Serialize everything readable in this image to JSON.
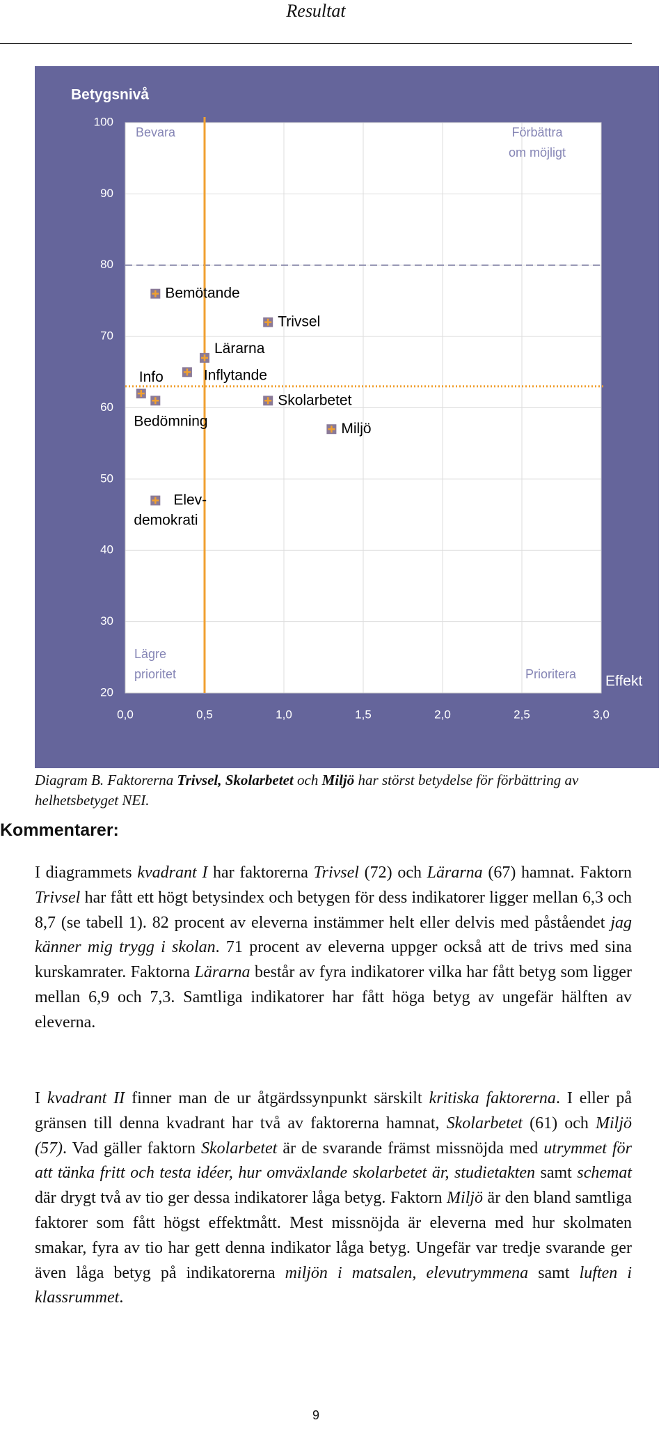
{
  "header": {
    "title": "Resultat"
  },
  "chart_data": {
    "type": "scatter",
    "y_label": "Betygsnivå",
    "x_label": "Effekt",
    "xlim": [
      0,
      3
    ],
    "ylim": [
      20,
      100
    ],
    "xticks": [
      {
        "value": 0,
        "label": "0,0"
      },
      {
        "value": 0.5,
        "label": "0,5"
      },
      {
        "value": 1,
        "label": "1,0"
      },
      {
        "value": 1.5,
        "label": "1,5"
      },
      {
        "value": 2,
        "label": "2,0"
      },
      {
        "value": 2.5,
        "label": "2,5"
      },
      {
        "value": 3,
        "label": "3,0"
      }
    ],
    "yticks": [
      20,
      30,
      40,
      50,
      60,
      70,
      80,
      90,
      100
    ],
    "grid": true,
    "labels": [
      "Bemötande",
      "Trivsel",
      "Lärarna",
      "Inflytande",
      "Info",
      "Bedömning",
      "Skolarbetet",
      "Miljö",
      "Elev-\ndemokrati"
    ],
    "x": [
      0.19,
      0.9,
      0.5,
      0.39,
      0.1,
      0.19,
      0.9,
      1.3,
      0.19
    ],
    "y": [
      76,
      72,
      67,
      65,
      62,
      61,
      61,
      57,
      47
    ],
    "color": "#f0a030",
    "reference_lines": {
      "x": 0.5,
      "y": 63,
      "color": "#f0a030"
    },
    "target_line": {
      "y": 80,
      "color": "#8888aa"
    },
    "quadrant_labels": [
      "Bevara",
      "Förbättra\nom möjligt",
      "Lägre\nprioritet",
      "Prioritera"
    ]
  },
  "caption": [
    "Diagram B. Faktorerna ",
    {
      "text": "Trivsel, Skolarbetet",
      "style": "bold"
    },
    " och ",
    {
      "text": "Miljö",
      "style": "bold"
    },
    " har störst betydelse för förbättring av helhetsbetyget NEI."
  ],
  "section_title": "Kommentarer:",
  "paragraphs": [
    [
      "I diagrammets ",
      {
        "text": "kvadrant I",
        "style": "italic"
      },
      " har faktorerna ",
      {
        "text": "Trivsel",
        "style": "italic"
      },
      " (72) och ",
      {
        "text": "Lärarna",
        "style": "italic"
      },
      " (67) hamnat. Faktorn ",
      {
        "text": "Trivsel",
        "style": "italic"
      },
      " har fått ett högt betysindex och betygen för dess indikatorer ligger mellan 6,3 och 8,7 (se tabell 1). 82 procent av eleverna instämmer helt eller delvis med påståendet ",
      {
        "text": "jag känner mig trygg i skolan",
        "style": "italic"
      },
      ". 71 procent av eleverna uppger också att de trivs med sina kurskamrater. Faktorna ",
      {
        "text": "Lärarna",
        "style": "italic"
      },
      " består av fyra indikatorer vilka har fått betyg som ligger mellan 6,9 och 7,3. Samtliga indikatorer har fått höga betyg av ungefär hälften av eleverna."
    ],
    [
      "I ",
      {
        "text": "kvadrant II",
        "style": "italic"
      },
      " finner man de ur åtgärdssynpunkt särskilt ",
      {
        "text": "kritiska fakto­rerna",
        "style": "italic"
      },
      ". I eller på gränsen till denna kvadrant har två av faktorerna ham­nat, ",
      {
        "text": "Skolarbetet",
        "style": "italic"
      },
      " (61) och ",
      {
        "text": "Miljö (57)",
        "style": "italic"
      },
      ". Vad gäller faktorn ",
      {
        "text": "Skolarbetet",
        "style": "italic"
      },
      " är de svarande främst missnöjda med ",
      {
        "text": "utrymmet för att tänka fritt och testa idéer, hur omväxlande skolarbetet är, studietakten",
        "style": "italic"
      },
      " samt ",
      {
        "text": "schemat",
        "style": "italic"
      },
      " där drygt två av tio ger dessa indikatorer låga betyg. Faktorn ",
      {
        "text": "Miljö",
        "style": "italic"
      },
      " är den bland samtliga faktorer som fått högst effektmått. Mest missnöjda är eleverna med hur skolmaten smakar, fyra av tio har gett denna indikator låga betyg. Ungefär var tredje svarande ger även låga betyg på indikato­rerna ",
      {
        "text": "miljön i matsalen, elevutrymmena",
        "style": "italic"
      },
      " samt ",
      {
        "text": "luften i klassrummet",
        "style": "italic"
      },
      "."
    ]
  ],
  "page_number": "9"
}
